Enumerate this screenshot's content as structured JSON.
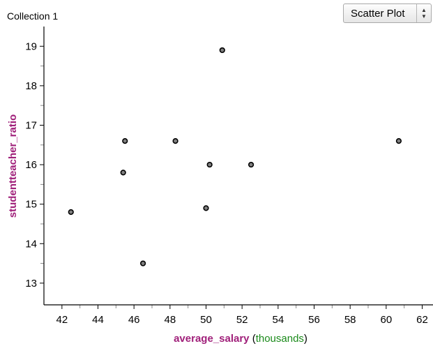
{
  "header": {
    "collection_title": "Collection 1",
    "plot_type": "Scatter Plot"
  },
  "colors": {
    "attribute_name": "#a0207a",
    "unit": "#1a8a1a",
    "point_fill": "#808080",
    "point_stroke": "#000000"
  },
  "chart_data": {
    "type": "scatter",
    "title": "",
    "xlabel": "average_salary",
    "xlabel_unit": "thousands",
    "ylabel": "studentteacher_ratio",
    "xlim": [
      41,
      62.6
    ],
    "ylim": [
      12.45,
      19.5
    ],
    "x_ticks": [
      "42",
      "44",
      "46",
      "48",
      "50",
      "52",
      "54",
      "56",
      "58",
      "60",
      "62"
    ],
    "y_ticks": [
      "13",
      "14",
      "15",
      "16",
      "17",
      "18",
      "19"
    ],
    "grid": false,
    "legend": "none",
    "points": [
      {
        "x": 42.5,
        "y": 14.8
      },
      {
        "x": 45.4,
        "y": 15.8
      },
      {
        "x": 45.5,
        "y": 16.6
      },
      {
        "x": 46.5,
        "y": 13.5
      },
      {
        "x": 48.3,
        "y": 16.6
      },
      {
        "x": 50.0,
        "y": 14.9
      },
      {
        "x": 50.2,
        "y": 16.0
      },
      {
        "x": 50.9,
        "y": 18.9
      },
      {
        "x": 52.5,
        "y": 16.0
      },
      {
        "x": 60.7,
        "y": 16.6
      }
    ]
  }
}
